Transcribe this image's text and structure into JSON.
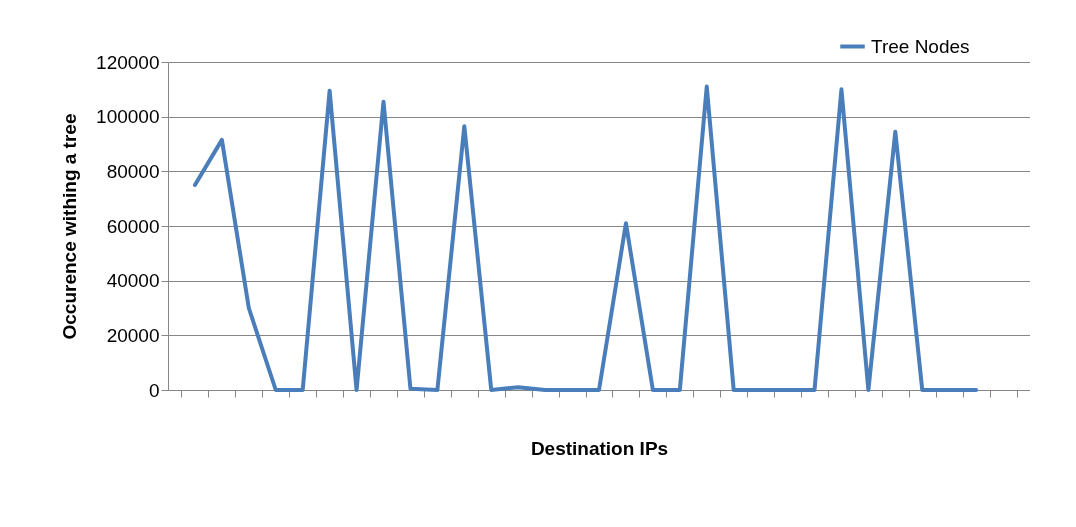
{
  "chart_data": {
    "type": "line",
    "xlabel": "Destination IPs",
    "ylabel": "Occurence withing a tree",
    "categories": [
      null,
      null,
      null,
      null,
      null,
      null,
      null,
      null,
      null,
      null,
      null,
      null,
      null,
      null,
      null,
      null,
      null,
      null,
      null,
      null,
      null,
      null,
      null,
      null,
      null,
      null,
      null,
      null,
      null,
      null,
      null
    ],
    "series": [
      {
        "name": "Tree Nodes",
        "color": "#4a7ebb",
        "values": [
          75000,
          91500,
          30000,
          0,
          0,
          109500,
          0,
          105500,
          500,
          0,
          96500,
          0,
          1000,
          0,
          0,
          0,
          61000,
          0,
          0,
          111000,
          0,
          0,
          0,
          0,
          110000,
          0,
          94500,
          0,
          0,
          0,
          null
        ]
      }
    ],
    "ylim": [
      0,
      120000
    ],
    "yticks": [
      0,
      20000,
      40000,
      60000,
      80000,
      100000,
      120000
    ],
    "grid": "y",
    "legend": "top right",
    "marker": "none",
    "line_style": "solid"
  }
}
